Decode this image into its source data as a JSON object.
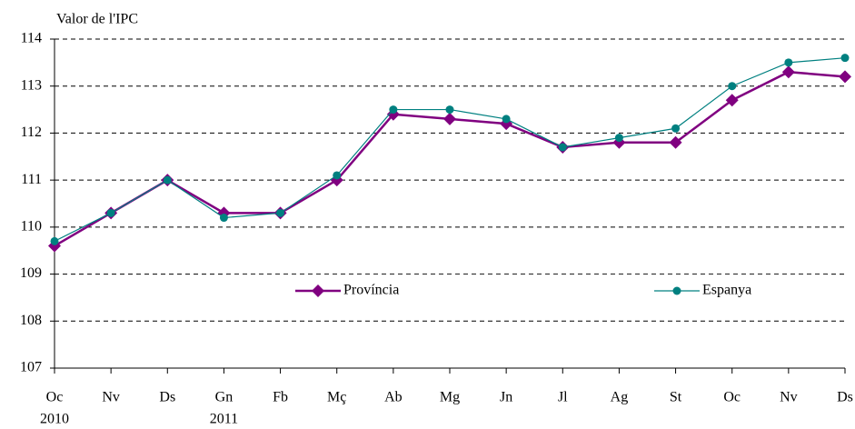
{
  "chart_data": {
    "type": "line",
    "y_axis_label": "Valor de l'IPC",
    "categories": [
      "Oc",
      "Nv",
      "Ds",
      "Gn",
      "Fb",
      "Mç",
      "Ab",
      "Mg",
      "Jn",
      "Jl",
      "Ag",
      "St",
      "Oc",
      "Nv",
      "Ds"
    ],
    "category_years": [
      "2010",
      null,
      null,
      "2011",
      null,
      null,
      null,
      null,
      null,
      null,
      null,
      null,
      null,
      null,
      null
    ],
    "series": [
      {
        "name": "Província",
        "color": "#800080",
        "marker": "diamond",
        "values": [
          109.6,
          110.3,
          111.0,
          110.3,
          110.3,
          111.0,
          112.4,
          112.3,
          112.2,
          111.7,
          111.8,
          111.8,
          112.7,
          113.3,
          113.2
        ]
      },
      {
        "name": "Espanya",
        "color": "#008080",
        "marker": "circle",
        "values": [
          109.7,
          110.3,
          111.0,
          110.2,
          110.3,
          111.1,
          112.5,
          112.5,
          112.3,
          111.7,
          111.9,
          112.1,
          113.0,
          113.5,
          113.6
        ]
      }
    ],
    "ylim": [
      107,
      114
    ],
    "yticks": [
      107,
      108,
      109,
      110,
      111,
      112,
      113,
      114
    ],
    "grid": true
  }
}
